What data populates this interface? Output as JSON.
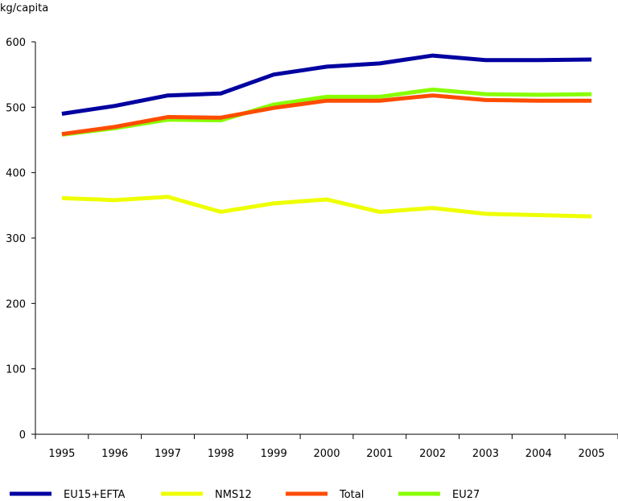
{
  "chart_data": {
    "type": "line",
    "title": "",
    "ylabel": "kg/capita",
    "xlabel": "",
    "ylim": [
      0,
      600
    ],
    "yticks": [
      "0",
      "100",
      "200",
      "300",
      "400",
      "500",
      "600"
    ],
    "categories": [
      "1995",
      "1996",
      "1997",
      "1998",
      "1999",
      "2000",
      "2001",
      "2002",
      "2003",
      "2004",
      "2005"
    ],
    "series": [
      {
        "name": "EU15+EFTA",
        "color": "#0000a0",
        "values": [
          490,
          502,
          518,
          521,
          550,
          562,
          567,
          579,
          572,
          572,
          573
        ]
      },
      {
        "name": "NMS12",
        "color": "#eeff00",
        "values": [
          361,
          358,
          363,
          340,
          353,
          359,
          340,
          346,
          337,
          335,
          333
        ]
      },
      {
        "name": "Total",
        "color": "#ff4c00",
        "values": [
          459,
          470,
          485,
          484,
          499,
          510,
          510,
          518,
          511,
          510,
          510
        ]
      },
      {
        "name": "EU27",
        "color": "#88ff00",
        "values": [
          458,
          468,
          481,
          480,
          504,
          516,
          516,
          527,
          520,
          519,
          520
        ]
      }
    ],
    "legend_position": "bottom",
    "grid": false
  }
}
